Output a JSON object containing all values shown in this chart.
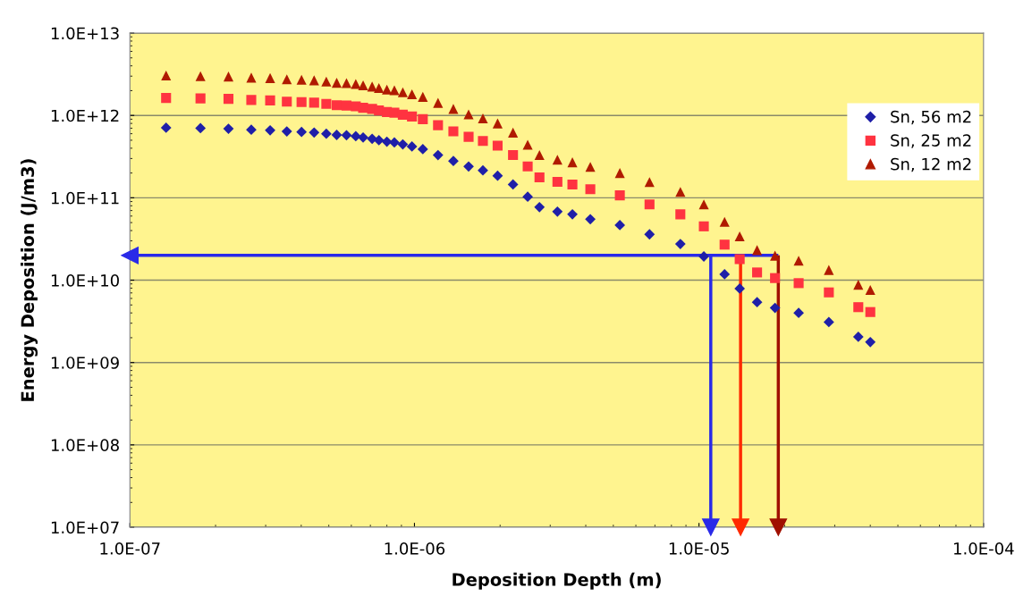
{
  "chart_data": {
    "type": "scatter",
    "xlabel": "Deposition Depth (m)",
    "ylabel": "Energy Deposition (J/m3)",
    "log": "xy",
    "grid": "y",
    "legend": "right",
    "xlim": [
      1e-07,
      0.0001
    ],
    "ylim": [
      10000000.0,
      10000000000000.0
    ],
    "xticks": [
      {
        "value": 1e-07,
        "label": "1.0E-07"
      },
      {
        "value": 1e-06,
        "label": "1.0E-06"
      },
      {
        "value": 1e-05,
        "label": "1.0E-05"
      },
      {
        "value": 0.0001,
        "label": "1.0E-04"
      }
    ],
    "yticks": [
      {
        "value": 10000000.0,
        "label": "1.0E+07"
      },
      {
        "value": 100000000.0,
        "label": "1.0E+08"
      },
      {
        "value": 1000000000.0,
        "label": "1.0E+09"
      },
      {
        "value": 10000000000.0,
        "label": "1.0E+10"
      },
      {
        "value": 100000000000.0,
        "label": "1.0E+11"
      },
      {
        "value": 1000000000000.0,
        "label": "1.0E+12"
      },
      {
        "value": 10000000000000.0,
        "label": "1.0E+13"
      }
    ],
    "x": [
      1.34e-07,
      1.77e-07,
      2.22e-07,
      2.67e-07,
      3.11e-07,
      3.56e-07,
      4.01e-07,
      4.44e-07,
      4.9e-07,
      5.33e-07,
      5.77e-07,
      6.22e-07,
      6.6e-07,
      7.1e-07,
      7.5e-07,
      8e-07,
      8.5e-07,
      9.1e-07,
      9.8e-07,
      1.07e-06,
      1.21e-06,
      1.37e-06,
      1.55e-06,
      1.74e-06,
      1.96e-06,
      2.22e-06,
      2.5e-06,
      2.75e-06,
      3.18e-06,
      3.59e-06,
      4.15e-06,
      5.27e-06,
      6.7e-06,
      8.6e-06,
      1.04e-05,
      1.23e-05,
      1.39e-05,
      1.6e-05,
      1.85e-05,
      2.24e-05,
      2.86e-05,
      3.63e-05,
      4e-05
    ],
    "series": [
      {
        "name": "Sn, 56 m2",
        "color": "#1f1fa8",
        "marker": "diamond",
        "values": [
          710000000000.0,
          700000000000.0,
          690000000000.0,
          670000000000.0,
          660000000000.0,
          640000000000.0,
          630000000000.0,
          620000000000.0,
          600000000000.0,
          580000000000.0,
          575000000000.0,
          560000000000.0,
          540000000000.0,
          520000000000.0,
          500000000000.0,
          480000000000.0,
          470000000000.0,
          445000000000.0,
          420000000000.0,
          390000000000.0,
          330000000000.0,
          280000000000.0,
          240000000000.0,
          215000000000.0,
          185000000000.0,
          145000000000.0,
          103000000000.0,
          77000000000.0,
          68000000000.0,
          63000000000.0,
          55000000000.0,
          46600000000.0,
          36000000000.0,
          27500000000.0,
          19400000000.0,
          11800000000.0,
          7900000000.0,
          5400000000.0,
          4600000000.0,
          4000000000.0,
          3100000000.0,
          2050000000.0,
          1770000000.0
        ]
      },
      {
        "name": "Sn, 25 m2",
        "color": "#ff3340",
        "marker": "square",
        "values": [
          1630000000000.0,
          1610000000000.0,
          1590000000000.0,
          1540000000000.0,
          1520000000000.0,
          1470000000000.0,
          1450000000000.0,
          1430000000000.0,
          1380000000000.0,
          1330000000000.0,
          1320000000000.0,
          1290000000000.0,
          1240000000000.0,
          1200000000000.0,
          1150000000000.0,
          1100000000000.0,
          1080000000000.0,
          1020000000000.0,
          970000000000.0,
          900000000000.0,
          760000000000.0,
          640000000000.0,
          550000000000.0,
          490000000000.0,
          430000000000.0,
          330000000000.0,
          240000000000.0,
          177000000000.0,
          156000000000.0,
          145000000000.0,
          127000000000.0,
          107000000000.0,
          83000000000.0,
          63000000000.0,
          45000000000.0,
          27000000000.0,
          18000000000.0,
          12400000000.0,
          10600000000.0,
          9200000000.0,
          7100000000.0,
          4700000000.0,
          4100000000.0
        ]
      },
      {
        "name": "Sn, 12 m2",
        "color": "#b01a00",
        "marker": "triangle",
        "values": [
          3050000000000.0,
          3000000000000.0,
          2970000000000.0,
          2880000000000.0,
          2840000000000.0,
          2750000000000.0,
          2710000000000.0,
          2670000000000.0,
          2580000000000.0,
          2490000000000.0,
          2470000000000.0,
          2410000000000.0,
          2320000000000.0,
          2240000000000.0,
          2150000000000.0,
          2060000000000.0,
          2020000000000.0,
          1910000000000.0,
          1810000000000.0,
          1680000000000.0,
          1420000000000.0,
          1200000000000.0,
          1030000000000.0,
          920000000000.0,
          800000000000.0,
          620000000000.0,
          440000000000.0,
          330000000000.0,
          290000000000.0,
          270000000000.0,
          237000000000.0,
          200000000000.0,
          155000000000.0,
          118000000000.0,
          83000000000.0,
          51000000000.0,
          34000000000.0,
          23200000000.0,
          19800000000.0,
          17200000000.0,
          13300000000.0,
          8800000000.0,
          7600000000.0
        ]
      }
    ],
    "ref_lines": [
      {
        "axis": "y",
        "value": 20000000000.0,
        "color": "#2a2ae8"
      },
      {
        "axis": "x",
        "value": 1.1e-05,
        "color": "#2a2ae8"
      },
      {
        "axis": "x",
        "value": 1.4e-05,
        "color": "#ff2a00"
      },
      {
        "axis": "x",
        "value": 1.9e-05,
        "color": "#a01000"
      }
    ]
  }
}
